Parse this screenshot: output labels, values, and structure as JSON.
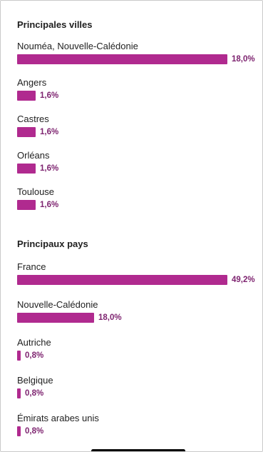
{
  "theme": {
    "bar_color": "#b02a8f",
    "value_color": "#7e2470"
  },
  "cities": {
    "title": "Principales villes",
    "items": [
      {
        "label": "Nouméa, Nouvelle-Calédonie",
        "value": "18,0%",
        "fraction": 0.18
      },
      {
        "label": "Angers",
        "value": "1,6%",
        "fraction": 0.016
      },
      {
        "label": "Castres",
        "value": "1,6%",
        "fraction": 0.016
      },
      {
        "label": "Orléans",
        "value": "1,6%",
        "fraction": 0.016
      },
      {
        "label": "Toulouse",
        "value": "1,6%",
        "fraction": 0.016
      }
    ]
  },
  "countries": {
    "title": "Principaux pays",
    "items": [
      {
        "label": "France",
        "value": "49,2%",
        "fraction": 0.492
      },
      {
        "label": "Nouvelle-Calédonie",
        "value": "18,0%",
        "fraction": 0.18
      },
      {
        "label": "Autriche",
        "value": "0,8%",
        "fraction": 0.008
      },
      {
        "label": "Belgique",
        "value": "0,8%",
        "fraction": 0.008
      },
      {
        "label": "Émirats arabes unis",
        "value": "0,8%",
        "fraction": 0.008
      }
    ]
  }
}
